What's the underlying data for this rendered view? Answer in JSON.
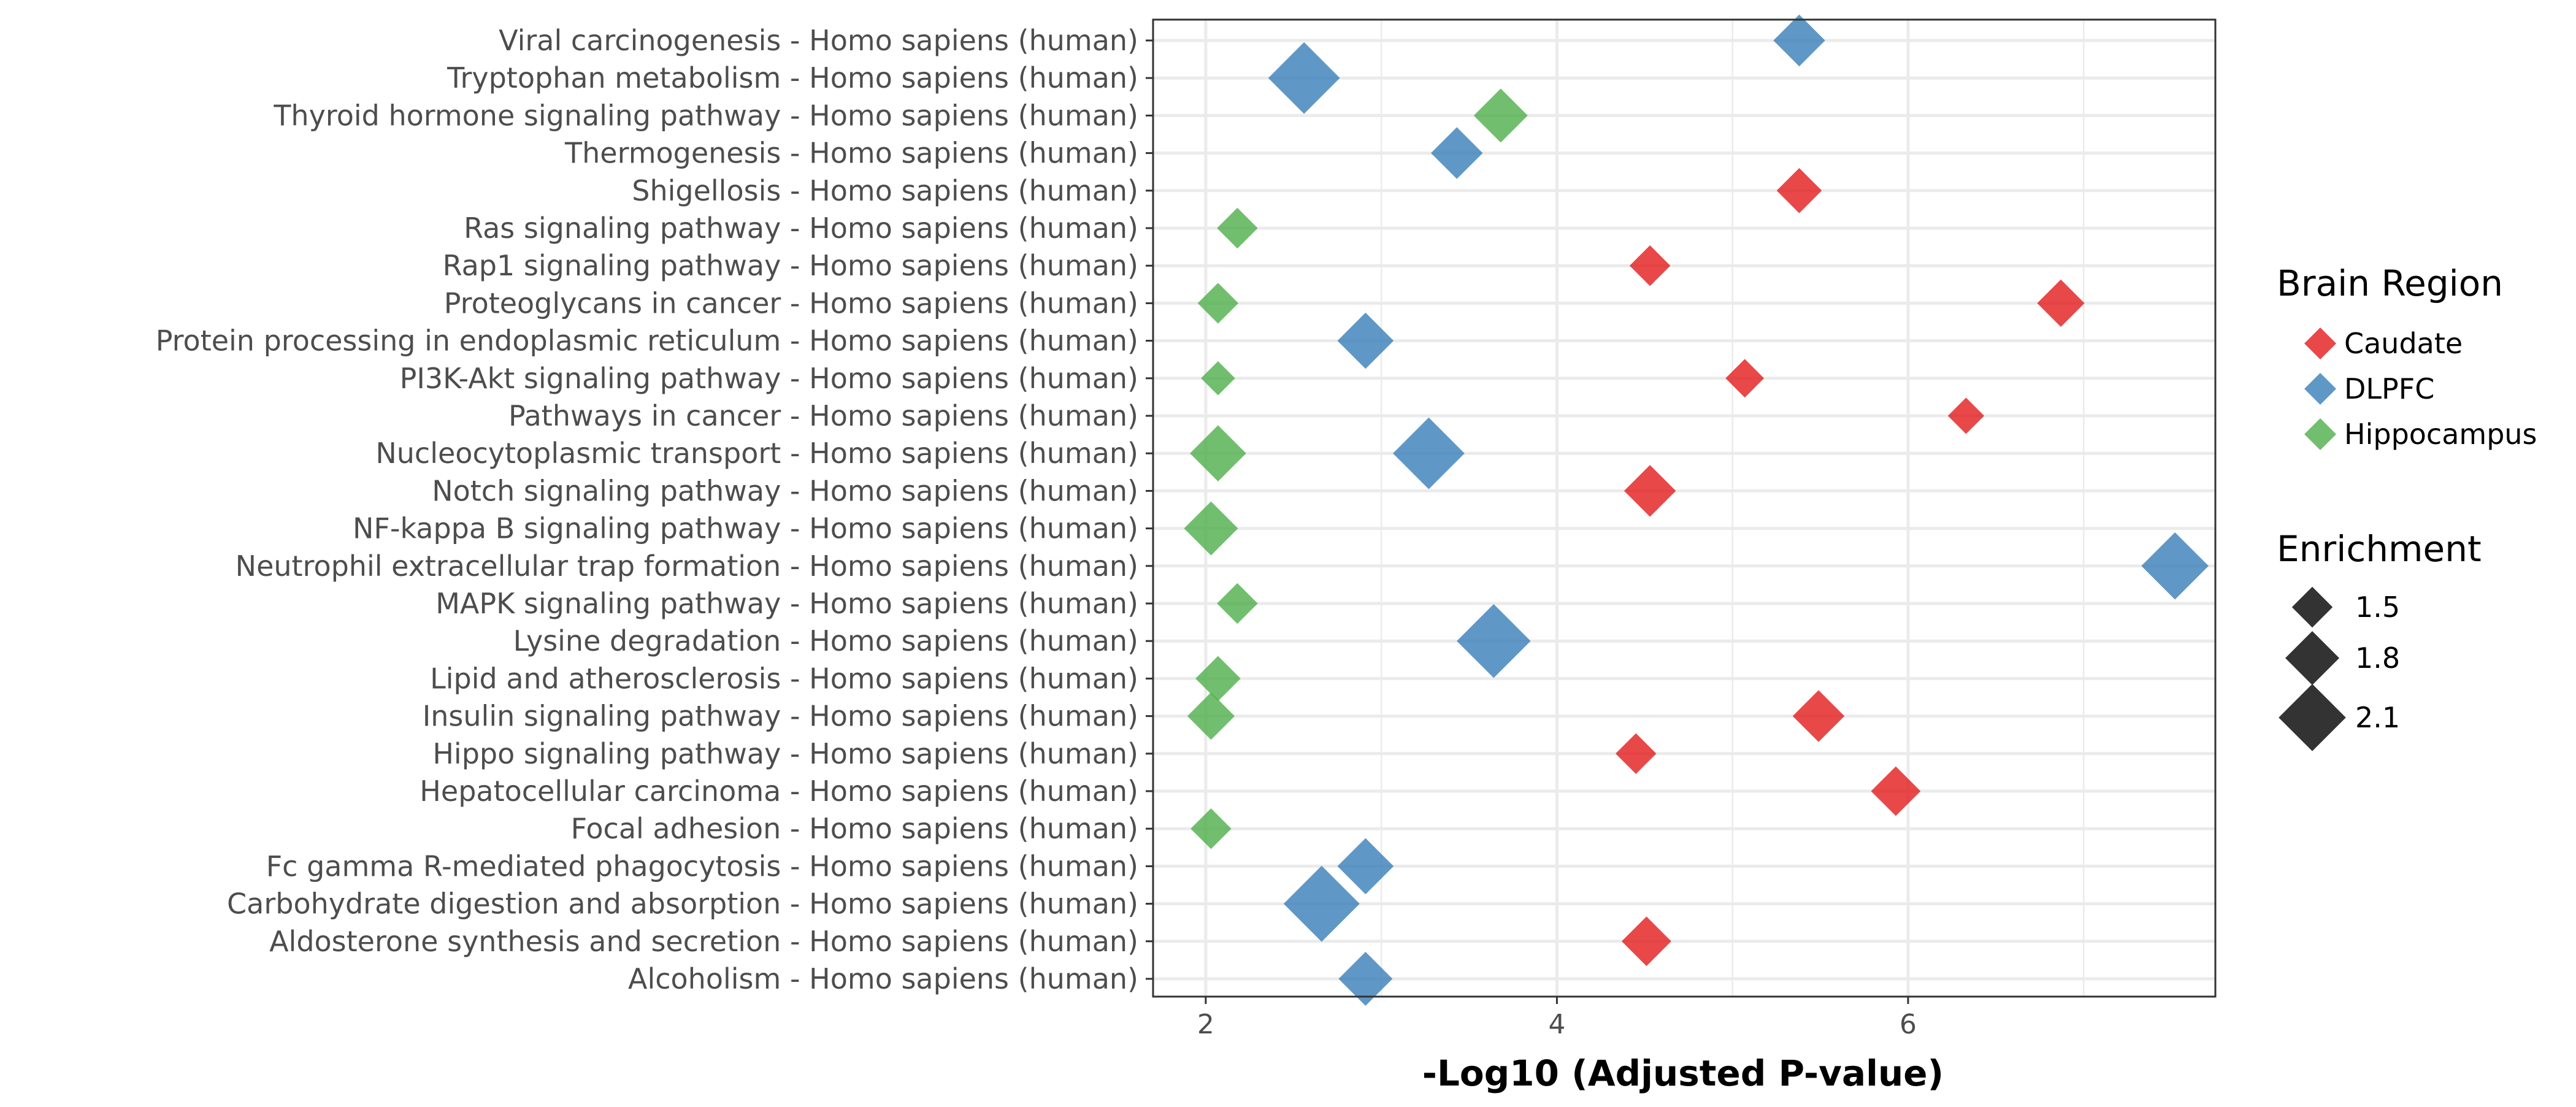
{
  "chart_data": {
    "type": "scatter",
    "xlabel": "-Log10 (Adjusted P-value)",
    "ylabel": "",
    "xlim": [
      1.7,
      7.75
    ],
    "xticks": [
      2,
      4,
      6
    ],
    "grid": true,
    "legend_placement": "right",
    "categories": [
      "Viral carcinogenesis - Homo sapiens (human)",
      "Tryptophan metabolism - Homo sapiens (human)",
      "Thyroid hormone signaling pathway - Homo sapiens (human)",
      "Thermogenesis - Homo sapiens (human)",
      "Shigellosis - Homo sapiens (human)",
      "Ras signaling pathway - Homo sapiens (human)",
      "Rap1 signaling pathway - Homo sapiens (human)",
      "Proteoglycans in cancer - Homo sapiens (human)",
      "Protein processing in endoplasmic reticulum - Homo sapiens (human)",
      "PI3K-Akt signaling pathway - Homo sapiens (human)",
      "Pathways in cancer - Homo sapiens (human)",
      "Nucleocytoplasmic transport - Homo sapiens (human)",
      "Notch signaling pathway - Homo sapiens (human)",
      "NF-kappa B signaling pathway - Homo sapiens (human)",
      "Neutrophil extracellular trap formation - Homo sapiens (human)",
      "MAPK signaling pathway - Homo sapiens (human)",
      "Lysine degradation - Homo sapiens (human)",
      "Lipid and atherosclerosis - Homo sapiens (human)",
      "Insulin signaling pathway - Homo sapiens (human)",
      "Hippo signaling pathway - Homo sapiens (human)",
      "Hepatocellular carcinoma - Homo sapiens (human)",
      "Focal adhesion - Homo sapiens (human)",
      "Fc gamma R-mediated phagocytosis - Homo sapiens (human)",
      "Carbohydrate digestion and absorption - Homo sapiens (human)",
      "Aldosterone synthesis and secretion - Homo sapiens (human)",
      "Alcoholism - Homo sapiens (human)"
    ],
    "series": [
      {
        "name": "Caudate",
        "color": "#e41a1c",
        "points": [
          {
            "category": "Shigellosis - Homo sapiens (human)",
            "x": 5.38,
            "enrichment": 1.6
          },
          {
            "category": "Rap1 signaling pathway - Homo sapiens (human)",
            "x": 4.53,
            "enrichment": 1.5
          },
          {
            "category": "Proteoglycans in cancer - Homo sapiens (human)",
            "x": 6.87,
            "enrichment": 1.65
          },
          {
            "category": "PI3K-Akt signaling pathway - Homo sapiens (human)",
            "x": 5.07,
            "enrichment": 1.45
          },
          {
            "category": "Pathways in cancer - Homo sapiens (human)",
            "x": 6.33,
            "enrichment": 1.4
          },
          {
            "category": "Notch signaling pathway - Homo sapiens (human)",
            "x": 4.53,
            "enrichment": 1.75
          },
          {
            "category": "Insulin signaling pathway - Homo sapiens (human)",
            "x": 5.49,
            "enrichment": 1.75
          },
          {
            "category": "Hippo signaling pathway - Homo sapiens (human)",
            "x": 4.45,
            "enrichment": 1.5
          },
          {
            "category": "Hepatocellular carcinoma - Homo sapiens (human)",
            "x": 5.93,
            "enrichment": 1.7
          },
          {
            "category": "Aldosterone synthesis and secretion - Homo sapiens (human)",
            "x": 4.51,
            "enrichment": 1.7
          }
        ]
      },
      {
        "name": "DLPFC",
        "color": "#377eb8",
        "points": [
          {
            "category": "Viral carcinogenesis - Homo sapiens (human)",
            "x": 5.38,
            "enrichment": 1.75
          },
          {
            "category": "Tryptophan metabolism - Homo sapiens (human)",
            "x": 2.56,
            "enrichment": 2.2
          },
          {
            "category": "Thermogenesis - Homo sapiens (human)",
            "x": 3.43,
            "enrichment": 1.75
          },
          {
            "category": "Protein processing in endoplasmic reticulum - Homo sapiens (human)",
            "x": 2.91,
            "enrichment": 1.85
          },
          {
            "category": "Nucleocytoplasmic transport - Homo sapiens (human)",
            "x": 3.27,
            "enrichment": 2.2
          },
          {
            "category": "Neutrophil extracellular trap formation - Homo sapiens (human)",
            "x": 7.52,
            "enrichment": 2.1
          },
          {
            "category": "Lysine degradation - Homo sapiens (human)",
            "x": 3.64,
            "enrichment": 2.25
          },
          {
            "category": "Fc gamma R-mediated phagocytosis - Homo sapiens (human)",
            "x": 2.91,
            "enrichment": 1.85
          },
          {
            "category": "Carbohydrate digestion and absorption - Homo sapiens (human)",
            "x": 2.66,
            "enrichment": 2.3
          },
          {
            "category": "Alcoholism - Homo sapiens (human)",
            "x": 2.91,
            "enrichment": 1.8
          }
        ]
      },
      {
        "name": "Hippocampus",
        "color": "#4daf4a",
        "points": [
          {
            "category": "Thyroid hormone signaling pathway - Homo sapiens (human)",
            "x": 3.68,
            "enrichment": 1.8
          },
          {
            "category": "Ras signaling pathway - Homo sapiens (human)",
            "x": 2.18,
            "enrichment": 1.5
          },
          {
            "category": "Proteoglycans in cancer - Homo sapiens (human)",
            "x": 2.07,
            "enrichment": 1.5
          },
          {
            "category": "PI3K-Akt signaling pathway - Homo sapiens (human)",
            "x": 2.07,
            "enrichment": 1.35
          },
          {
            "category": "Nucleocytoplasmic transport - Homo sapiens (human)",
            "x": 2.07,
            "enrichment": 1.85
          },
          {
            "category": "NF-kappa B signaling pathway - Homo sapiens (human)",
            "x": 2.03,
            "enrichment": 1.8
          },
          {
            "category": "MAPK signaling pathway - Homo sapiens (human)",
            "x": 2.18,
            "enrichment": 1.5
          },
          {
            "category": "Lipid and atherosclerosis - Homo sapiens (human)",
            "x": 2.07,
            "enrichment": 1.6
          },
          {
            "category": "Insulin signaling pathway - Homo sapiens (human)",
            "x": 2.03,
            "enrichment": 1.65
          },
          {
            "category": "Focal adhesion - Homo sapiens (human)",
            "x": 2.03,
            "enrichment": 1.5
          }
        ]
      }
    ],
    "legend_color": {
      "title": "Brain Region",
      "entries": [
        "Caudate",
        "DLPFC",
        "Hippocampus"
      ]
    },
    "legend_size": {
      "title": "Enrichment",
      "entries": [
        {
          "label": "1.5",
          "value": 1.5
        },
        {
          "label": "1.8",
          "value": 1.8
        },
        {
          "label": "2.1",
          "value": 2.1
        }
      ]
    }
  }
}
